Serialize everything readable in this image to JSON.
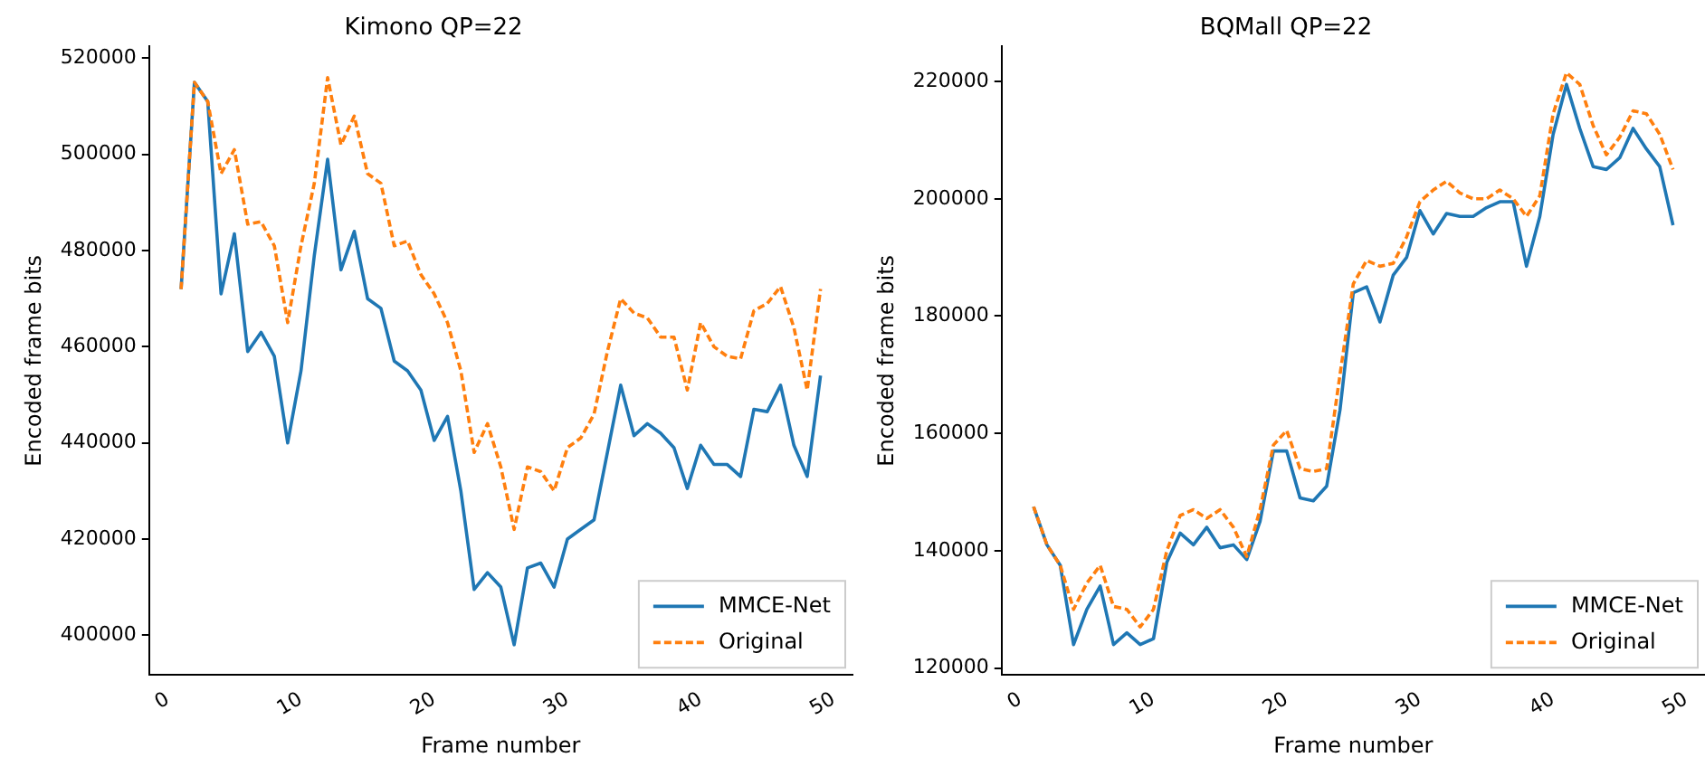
{
  "chart_data": [
    {
      "type": "line",
      "title": "Kimono QP=22",
      "xlabel": "Frame number",
      "ylabel": "Encoded frame bits",
      "x": [
        1,
        2,
        3,
        4,
        5,
        6,
        7,
        8,
        9,
        10,
        11,
        12,
        13,
        14,
        15,
        16,
        17,
        18,
        19,
        20,
        21,
        22,
        23,
        24,
        25,
        26,
        27,
        28,
        29,
        30,
        31,
        32,
        33,
        34,
        35,
        36,
        37,
        38,
        39,
        40,
        41,
        42,
        43,
        44,
        45,
        46,
        47,
        48,
        49
      ],
      "series": [
        {
          "name": "MMCE-Net",
          "color": "#1f77b4",
          "line_style": "solid",
          "values": [
            472000,
            515000,
            511000,
            471000,
            483500,
            459000,
            463000,
            458000,
            440000,
            455000,
            479000,
            499000,
            476000,
            484000,
            470000,
            468000,
            457000,
            455000,
            451000,
            440500,
            445500,
            430000,
            409500,
            413000,
            410000,
            398000,
            414000,
            415000,
            410000,
            420000,
            422000,
            424000,
            438000,
            452000,
            441500,
            444000,
            442000,
            439000,
            430500,
            439500,
            435500,
            435500,
            433000,
            447000,
            446500,
            452000,
            439500,
            433000,
            454000
          ]
        },
        {
          "name": "Original",
          "color": "#ff7f0e",
          "line_style": "dashed",
          "values": [
            472000,
            515000,
            511000,
            496000,
            501000,
            485500,
            486000,
            481000,
            465000,
            481000,
            494000,
            516000,
            502000,
            508000,
            496000,
            494000,
            481000,
            482000,
            475000,
            471000,
            465000,
            455000,
            438000,
            444000,
            435000,
            422000,
            435000,
            434000,
            430000,
            439000,
            441000,
            446000,
            459000,
            470000,
            467000,
            466000,
            462000,
            462000,
            451000,
            465000,
            460000,
            458000,
            457500,
            467500,
            469000,
            472500,
            464000,
            451000,
            472000
          ]
        }
      ],
      "xlim": [
        -1.4,
        51.4
      ],
      "xticks": [
        0,
        10,
        20,
        30,
        40,
        50
      ],
      "ylim": [
        391700,
        522500
      ],
      "yticks": [
        400000,
        420000,
        440000,
        460000,
        480000,
        500000,
        520000
      ],
      "grid": false,
      "legend": "bottom right",
      "marker": "none"
    },
    {
      "type": "line",
      "title": "BQMall QP=22",
      "xlabel": "Frame number",
      "ylabel": "Encoded frame bits",
      "x": [
        1,
        2,
        3,
        4,
        5,
        6,
        7,
        8,
        9,
        10,
        11,
        12,
        13,
        14,
        15,
        16,
        17,
        18,
        19,
        20,
        21,
        22,
        23,
        24,
        25,
        26,
        27,
        28,
        29,
        30,
        31,
        32,
        33,
        34,
        35,
        36,
        37,
        38,
        39,
        40,
        41,
        42,
        43,
        44,
        45,
        46,
        47,
        48,
        49
      ],
      "series": [
        {
          "name": "MMCE-Net",
          "color": "#1f77b4",
          "line_style": "solid",
          "values": [
            147500,
            141000,
            137500,
            124000,
            130000,
            134000,
            124000,
            126000,
            124000,
            125000,
            138000,
            143000,
            141000,
            144000,
            140500,
            141000,
            138500,
            145000,
            157000,
            157000,
            149000,
            148500,
            151000,
            164000,
            184000,
            185000,
            179000,
            187000,
            190000,
            198000,
            194000,
            197500,
            197000,
            197000,
            198500,
            199500,
            199500,
            188500,
            197000,
            211000,
            219500,
            212000,
            205500,
            205000,
            207000,
            212000,
            208500,
            205500,
            195500
          ]
        },
        {
          "name": "Original",
          "color": "#ff7f0e",
          "line_style": "dashed",
          "values": [
            147500,
            141000,
            137500,
            130000,
            134500,
            137500,
            130500,
            130000,
            127000,
            130000,
            140000,
            146000,
            147000,
            145500,
            147000,
            144000,
            139000,
            147000,
            158000,
            160500,
            154000,
            153500,
            154000,
            170000,
            185500,
            189500,
            188500,
            189000,
            193500,
            199500,
            201500,
            203000,
            201000,
            200000,
            200000,
            201500,
            200000,
            197000,
            200500,
            214500,
            221500,
            219500,
            212500,
            207500,
            210500,
            215000,
            214500,
            211000,
            205000
          ]
        }
      ],
      "xlim": [
        -1.4,
        51.4
      ],
      "xticks": [
        0,
        10,
        20,
        30,
        40,
        50
      ],
      "ylim": [
        118800,
        226000
      ],
      "yticks": [
        120000,
        140000,
        160000,
        180000,
        200000,
        220000
      ],
      "grid": false,
      "legend": "bottom right",
      "marker": "none"
    }
  ]
}
